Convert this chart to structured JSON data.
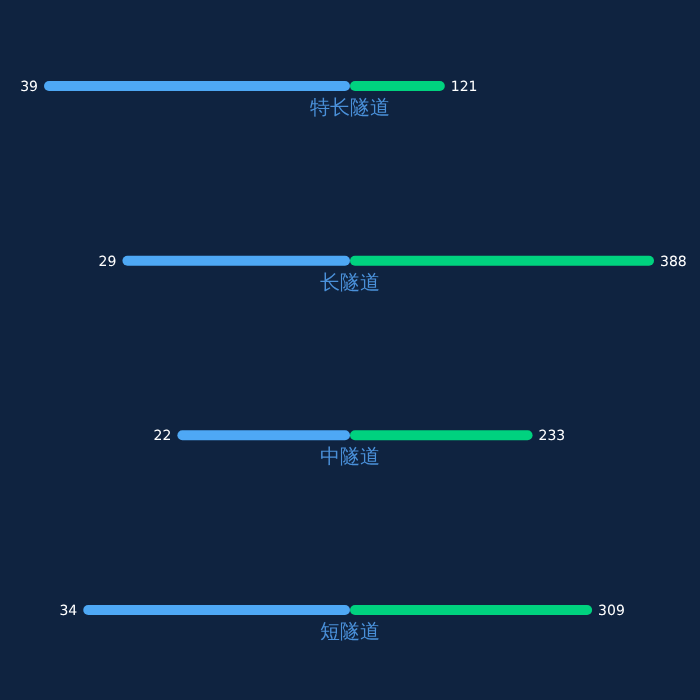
{
  "chart_data": [
    {
      "type": "bar",
      "orientation": "horizontal",
      "categories": [
        "特长隧道",
        "长隧道",
        "中隧道",
        "短隧道"
      ],
      "data_labels": true,
      "xlim": [
        39,
        0
      ],
      "values": [
        39,
        29,
        22,
        34
      ],
      "color": "#4ea8f5"
    },
    {
      "type": "bar",
      "orientation": "horizontal",
      "categories": [
        null,
        null,
        null,
        null
      ],
      "data_labels": true,
      "xlim": [
        0,
        388
      ],
      "values": [
        121,
        388,
        233,
        309
      ],
      "color": "#00d27f"
    }
  ]
}
